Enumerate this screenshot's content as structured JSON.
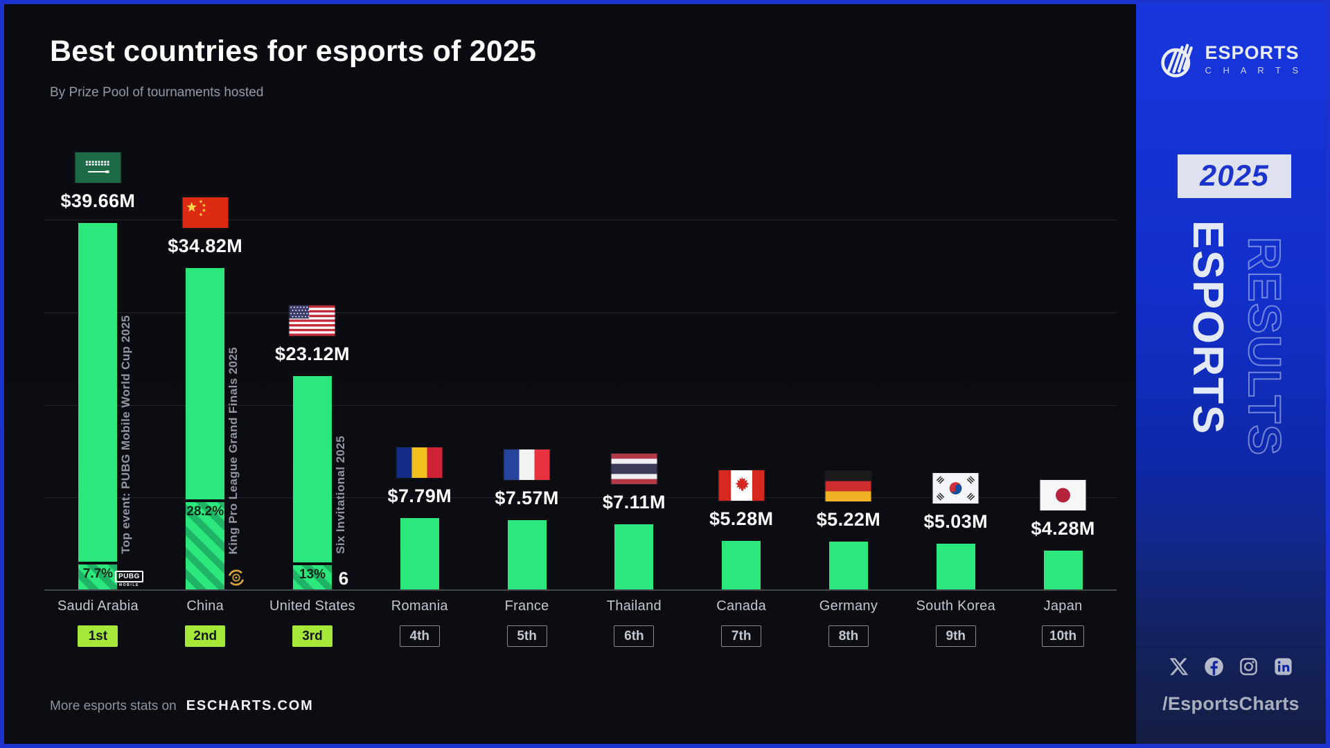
{
  "header": {
    "title": "Best countries for esports of 2025",
    "subtitle": "By Prize Pool of tournaments hosted"
  },
  "chart_data": {
    "type": "bar",
    "title": "Best countries for esports of 2025",
    "subtitle": "By Prize Pool of tournaments hosted",
    "unit": "USD millions",
    "ylim": [
      0,
      40
    ],
    "gridline_step_millions": 10,
    "grid": "on",
    "categories": [
      "Saudi Arabia",
      "China",
      "United States",
      "Romania",
      "France",
      "Thailand",
      "Canada",
      "Germany",
      "South Korea",
      "Japan"
    ],
    "values_millions": [
      39.66,
      34.82,
      23.12,
      7.79,
      7.57,
      7.11,
      5.28,
      5.22,
      5.03,
      4.28
    ],
    "value_labels": [
      "$39.66M",
      "$34.82M",
      "$23.12M",
      "$7.79M",
      "$7.57M",
      "$7.11M",
      "$5.28M",
      "$5.22M",
      "$5.03M",
      "$4.28M"
    ],
    "ranks": [
      "1st",
      "2nd",
      "3rd",
      "4th",
      "5th",
      "6th",
      "7th",
      "8th",
      "9th",
      "10th"
    ],
    "rank_highlighted": [
      true,
      true,
      true,
      false,
      false,
      false,
      false,
      false,
      false,
      false
    ],
    "flags": [
      "sa",
      "cn",
      "us",
      "ro",
      "fr",
      "th",
      "ca",
      "de",
      "kr",
      "jp"
    ],
    "top_events": [
      {
        "index": 0,
        "percent": 7.7,
        "percent_label": "7.7%",
        "label": "Top event: PUBG Mobile World Cup 2025",
        "logo": "pubg-mobile-logo",
        "logo_text_main": "PUBG",
        "logo_text_sub": "MOBILE"
      },
      {
        "index": 1,
        "percent": 28.2,
        "percent_label": "28.2%",
        "label": "King Pro League Grand Finals 2025",
        "logo": "king-pro-league-logo"
      },
      {
        "index": 2,
        "percent": 13,
        "percent_label": "13%",
        "label": "Six Invitational 2025",
        "logo": "six-invitational-logo",
        "logo_text_main": "6"
      }
    ],
    "colors": {
      "bar": "#2CE87C",
      "bar_hatch_dark": "#1FB365",
      "rank_badge": "#A6E83A",
      "background": "#0b0d12",
      "sidebar_blue": "#1736dd",
      "kpl_gold": "#d9a43e"
    }
  },
  "footer": {
    "prefix": "More esports stats on",
    "site": "ESCHARTS.COM"
  },
  "sidebar": {
    "brand": {
      "line1": "ESPORTS",
      "line2": "C H A R T S"
    },
    "year_badge": "2025",
    "vertical_text_solid": "ESPORTS",
    "vertical_text_outline": "RESULTS",
    "social": [
      "x",
      "facebook",
      "instagram",
      "linkedin"
    ],
    "handle": "/EsportsCharts"
  }
}
